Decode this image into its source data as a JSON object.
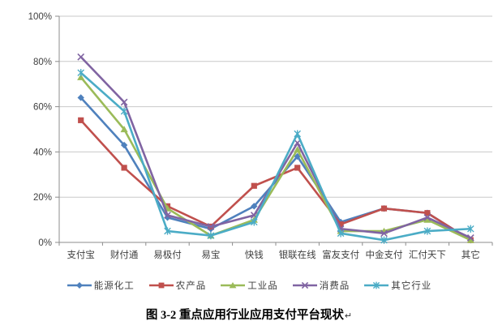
{
  "figure": {
    "title": "图 3-2 重点应用行业应用支付平台现状",
    "paragraph_mark": "↵"
  },
  "chart_data": {
    "type": "line",
    "title": "",
    "categories": [
      "支付宝",
      "财付通",
      "易极付",
      "易宝",
      "快钱",
      "银联在线",
      "富友支付",
      "中金支付",
      "汇付天下",
      "其它"
    ],
    "series": [
      {
        "name": "能源化工",
        "color": "#4F81BD",
        "marker": "diamond",
        "values": [
          64,
          43,
          11,
          6,
          16,
          38,
          9,
          15,
          13,
          1
        ]
      },
      {
        "name": "农产品",
        "color": "#C0504D",
        "marker": "square",
        "values": [
          54,
          33,
          16,
          7,
          25,
          33,
          8,
          15,
          13,
          1
        ]
      },
      {
        "name": "工业品",
        "color": "#9BBB59",
        "marker": "triangle",
        "values": [
          73,
          50,
          15,
          3,
          10,
          41,
          5,
          5,
          10,
          1
        ]
      },
      {
        "name": "消费品",
        "color": "#8064A2",
        "marker": "x",
        "values": [
          82,
          62,
          12,
          7,
          12,
          44,
          6,
          4,
          11,
          2
        ]
      },
      {
        "name": "其它行业",
        "color": "#4BACC6",
        "marker": "asterisk",
        "values": [
          75,
          58,
          5,
          3,
          9,
          48,
          4,
          1,
          5,
          6
        ]
      }
    ],
    "y_axis": {
      "min": 0,
      "max": 100,
      "step": 20,
      "tick_labels": [
        "0%",
        "20%",
        "40%",
        "60%",
        "80%",
        "100%"
      ]
    },
    "x_axis": {
      "label": ""
    },
    "grid": true,
    "legend_position": "bottom"
  },
  "style": {
    "axis_color": "#8C8C8C",
    "grid_color": "#C9C9C9",
    "text_color": "#3F3F3F",
    "background": "#FFFFFF"
  }
}
